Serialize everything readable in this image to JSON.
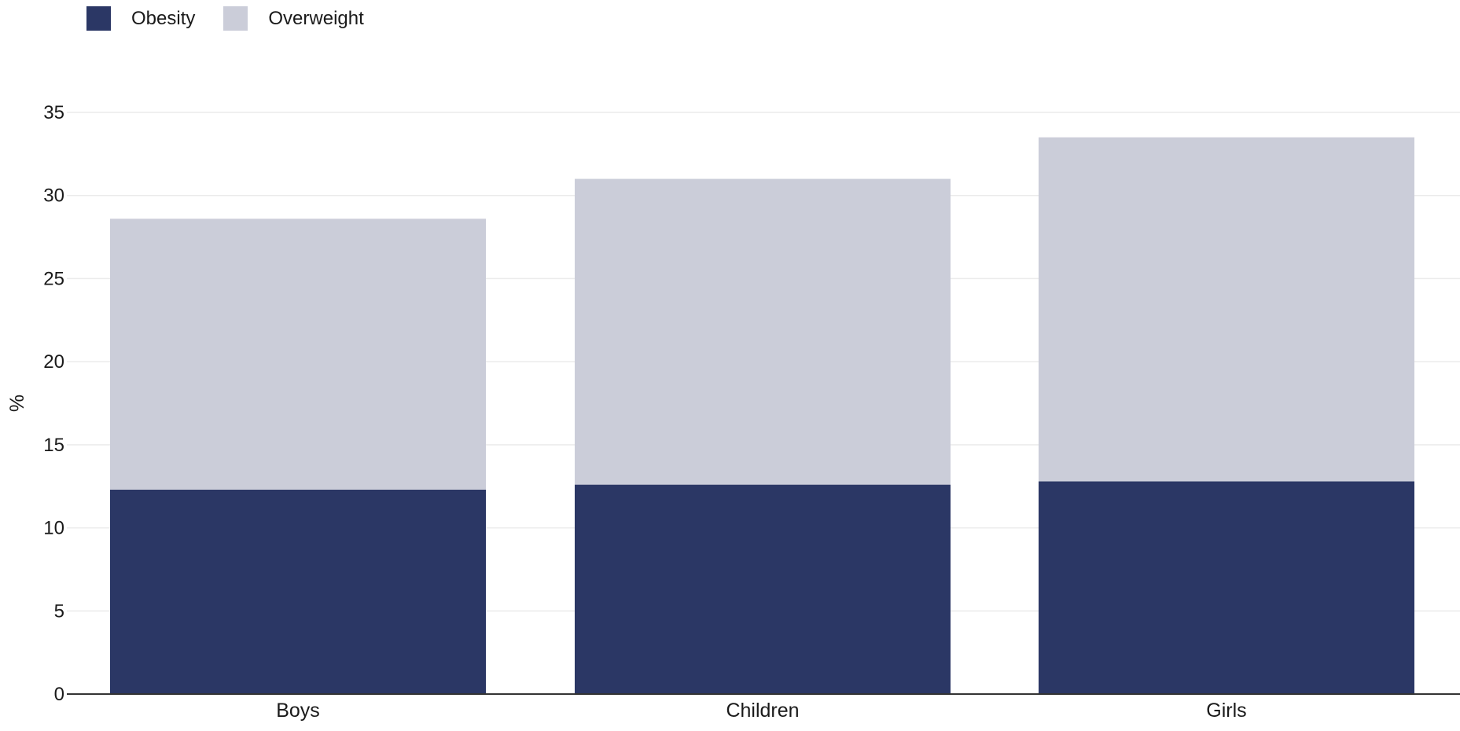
{
  "legend": [
    {
      "name": "Obesity",
      "color": "#2b3765"
    },
    {
      "name": "Overweight",
      "color": "#cbcdd9"
    }
  ],
  "chart_data": {
    "type": "bar",
    "stacked": true,
    "categories": [
      "Boys",
      "Children",
      "Girls"
    ],
    "series": [
      {
        "name": "Obesity",
        "color": "#2b3765",
        "values": [
          12.3,
          12.6,
          12.8
        ]
      },
      {
        "name": "Overweight",
        "color": "#cbcdd9",
        "values": [
          16.3,
          18.4,
          20.7
        ]
      }
    ],
    "ylabel": "%",
    "xlabel": "",
    "ylim": [
      0,
      35
    ],
    "yticks": [
      "0",
      "5",
      "10",
      "15",
      "20",
      "25",
      "30",
      "35"
    ],
    "grid": true,
    "legend_position": "top-left"
  }
}
